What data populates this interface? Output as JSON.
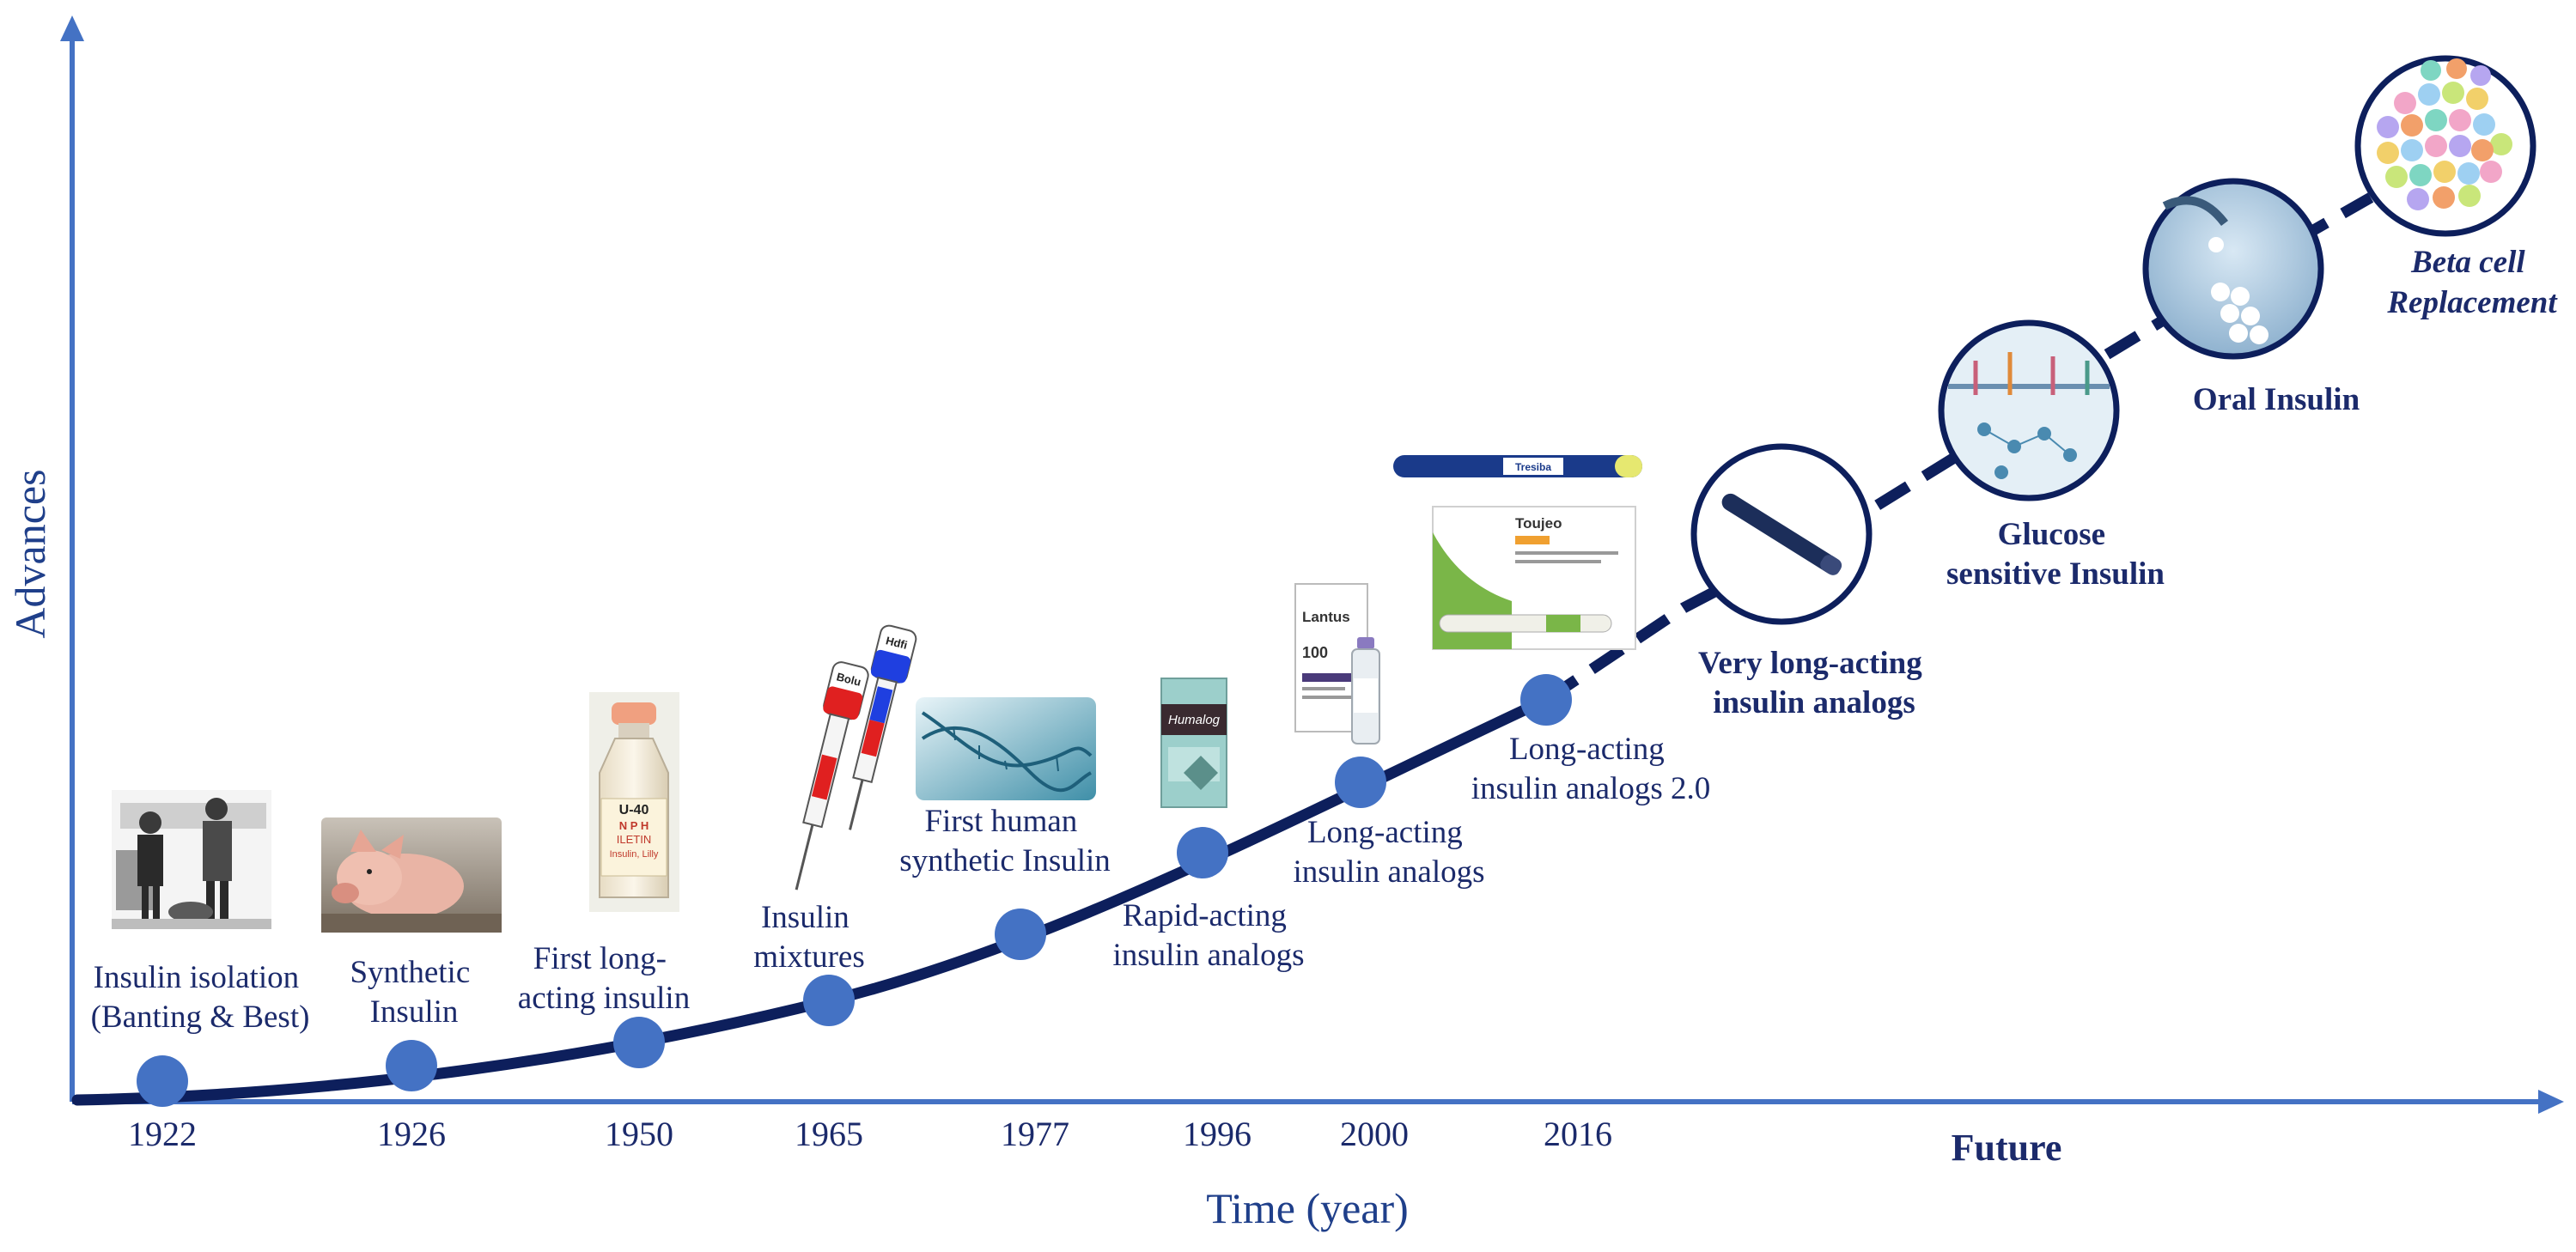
{
  "axes": {
    "y_label": "Advances",
    "x_label": "Time (year)",
    "future_label": "Future"
  },
  "colors": {
    "axis": "#4472c4",
    "curve": "#0d1f5c",
    "marker": "#4472c4",
    "text": "#1b2a6b"
  },
  "milestones": [
    {
      "year": "1922",
      "lines": [
        "Insulin isolation",
        "(Banting & Best)"
      ]
    },
    {
      "year": "1926",
      "lines": [
        "Synthetic",
        "Insulin"
      ]
    },
    {
      "year": "1950",
      "lines": [
        "First long-",
        "acting insulin"
      ]
    },
    {
      "year": "1965",
      "lines": [
        "Insulin",
        "mixtures"
      ]
    },
    {
      "year": "1977",
      "lines": [
        "First human",
        "synthetic Insulin"
      ]
    },
    {
      "year": "1996",
      "lines": [
        "Rapid-acting",
        "insulin analogs"
      ]
    },
    {
      "year": "2000",
      "lines": [
        "Long-acting",
        "insulin analogs"
      ]
    },
    {
      "year": "2016",
      "lines": [
        "Long-acting",
        "insulin analogs 2.0"
      ]
    }
  ],
  "future": [
    {
      "lines": [
        "Very long-acting",
        "insulin analogs"
      ],
      "italic": false,
      "icon": "insulin-pen-icon"
    },
    {
      "lines": [
        "Glucose",
        "sensitive Insulin"
      ],
      "italic": false,
      "icon": "cell-pathway-icon"
    },
    {
      "lines": [
        "Oral Insulin"
      ],
      "italic": false,
      "icon": "pills-icon"
    },
    {
      "lines": [
        "Beta cell",
        "Replacement"
      ],
      "italic": true,
      "icon": "beta-cells-icon"
    }
  ],
  "product_labels": {
    "vial_strength": "U-40",
    "vial_type": "N P H",
    "vial_brand": "ILETIN",
    "vial_desc": "Insulin, Lilly",
    "syringe_red": "Bolu",
    "syringe_blue": "Hdfi",
    "humalog": "Humalog",
    "lantus": "Lantus",
    "lantus_dose": "100",
    "toujeo": "Toujeo",
    "tresiba": "Tresiba"
  }
}
